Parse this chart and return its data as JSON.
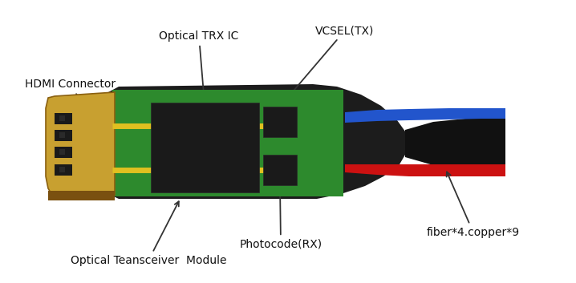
{
  "bg_color": "#ffffff",
  "colors": {
    "black_housing": "#1c1c1c",
    "green_pcb": "#2d8a2d",
    "gold_body": "#c8a030",
    "gold_contact": "#d4b040",
    "gold_dark": "#8a6010",
    "yellow_line": "#e0c020",
    "chip_black": "#1a1a1a",
    "chip_edge": "#2a2a2a",
    "red_cable": "#cc1111",
    "blue_cable": "#2255cc",
    "cable_black": "#111111"
  },
  "labels": {
    "optical_trx": "Optical TRX IC",
    "vcsel": "VCSEL(TX)",
    "hdmi": "HDMI Connector",
    "photocode": "Photocode(RX)",
    "fiber": "fiber*4.copper*9",
    "module": "Optical Teansceiver  Module"
  },
  "figsize": [
    7.18,
    3.53
  ],
  "dpi": 100
}
